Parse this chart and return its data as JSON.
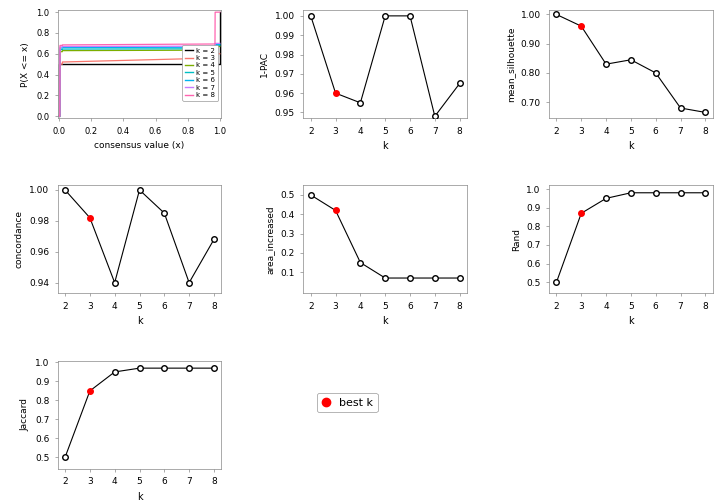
{
  "k_values": [
    2,
    3,
    4,
    5,
    6,
    7,
    8
  ],
  "best_k": 3,
  "one_pac": [
    1.0,
    0.96,
    0.955,
    1.0,
    1.0,
    0.948,
    0.965
  ],
  "mean_silhouette": [
    1.0,
    0.96,
    0.83,
    0.845,
    0.8,
    0.68,
    0.665
  ],
  "concordance": [
    1.0,
    0.982,
    0.94,
    1.0,
    0.985,
    0.94,
    0.968
  ],
  "area_increased": [
    0.5,
    0.42,
    0.15,
    0.07,
    0.07,
    0.07,
    0.07
  ],
  "rand": [
    0.5,
    0.87,
    0.95,
    0.98,
    0.98,
    0.98,
    0.98
  ],
  "jaccard": [
    0.5,
    0.85,
    0.95,
    0.97,
    0.97,
    0.97,
    0.97
  ],
  "ecdf_colors": [
    "#000000",
    "#F8766D",
    "#7CAE00",
    "#00BFC4",
    "#00B4F0",
    "#C77CFF",
    "#FF64B0"
  ],
  "ecdf_labels": [
    "k = 2",
    "k = 3",
    "k = 4",
    "k = 5",
    "k = 6",
    "k = 7",
    "k = 8"
  ],
  "bg_color": "#FFFFFF",
  "point_color_open": "#FFFFFF",
  "point_color_best": "#FF0000",
  "line_color": "#000000",
  "axis_color": "#888888",
  "grid_color": "#DDDDDD"
}
